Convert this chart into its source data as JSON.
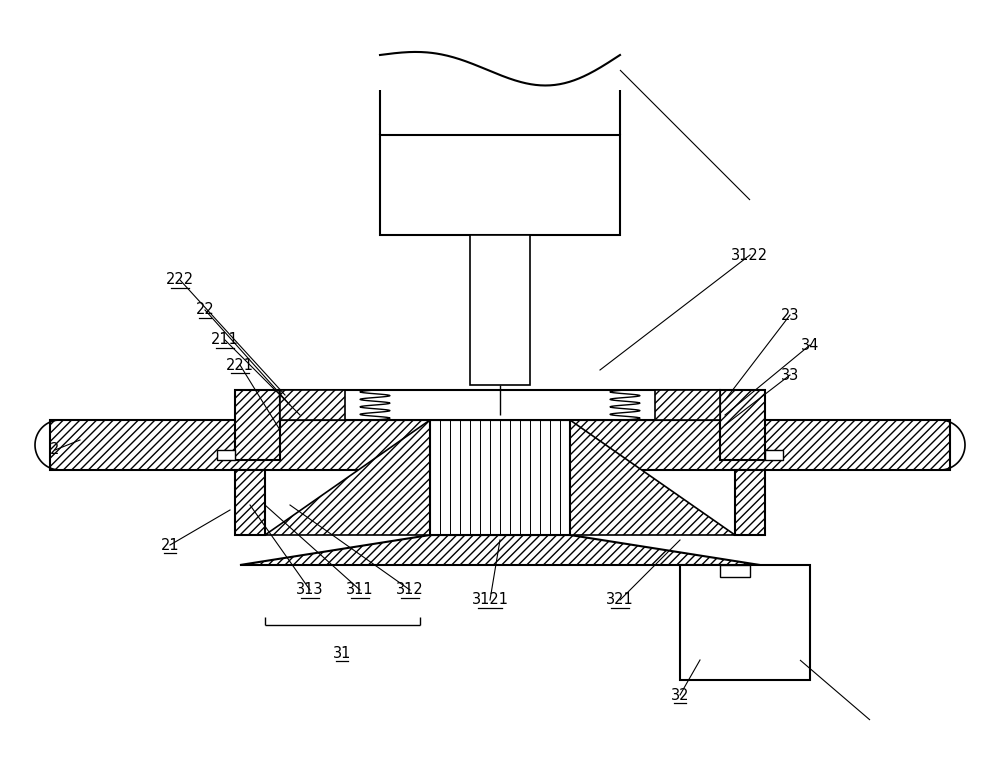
{
  "bg_color": "#ffffff",
  "line_color": "#000000",
  "fig_width": 10.0,
  "fig_height": 7.7,
  "dpi": 100
}
